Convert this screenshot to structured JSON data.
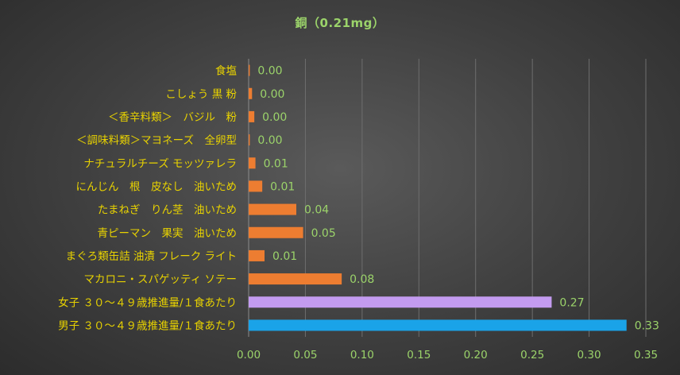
{
  "chart_data": {
    "type": "bar",
    "orientation": "horizontal",
    "title": "銅（0.21mg）",
    "categories": [
      "食塩",
      "こしょう 黒 粉",
      "＜香辛料類＞　バジル　粉",
      "＜調味料類＞マヨネーズ　全卵型",
      "ナチュラルチーズ モッツァレラ",
      "にんじん　根　皮なし　油いため",
      "たまねぎ　りん茎　油いため",
      "青ピーマン　果実　油いため",
      "まぐろ類缶詰 油漬 フレーク ライト",
      "マカロニ・スパゲッティ ソテー",
      "女子 ３０～４９歳推進量/１食あたり",
      "男子 ３０～４９歳推進量/１食あたり"
    ],
    "values": [
      0.001,
      0.003,
      0.005,
      0.001,
      0.006,
      0.012,
      0.042,
      0.048,
      0.014,
      0.082,
      0.267,
      0.333
    ],
    "value_labels": [
      "0.00",
      "0.00",
      "0.00",
      "0.00",
      "0.01",
      "0.01",
      "0.04",
      "0.05",
      "0.01",
      "0.08",
      "0.27",
      "0.33"
    ],
    "bar_colors": [
      "#ed7d31",
      "#ed7d31",
      "#ed7d31",
      "#ed7d31",
      "#ed7d31",
      "#ed7d31",
      "#ed7d31",
      "#ed7d31",
      "#ed7d31",
      "#ed7d31",
      "#c39bf0",
      "#1aa3e8"
    ],
    "xlim": [
      0,
      0.35
    ],
    "x_ticks": [
      "0.00",
      "0.05",
      "0.10",
      "0.15",
      "0.20",
      "0.25",
      "0.30",
      "0.35"
    ],
    "grid": true,
    "legend": "none"
  }
}
